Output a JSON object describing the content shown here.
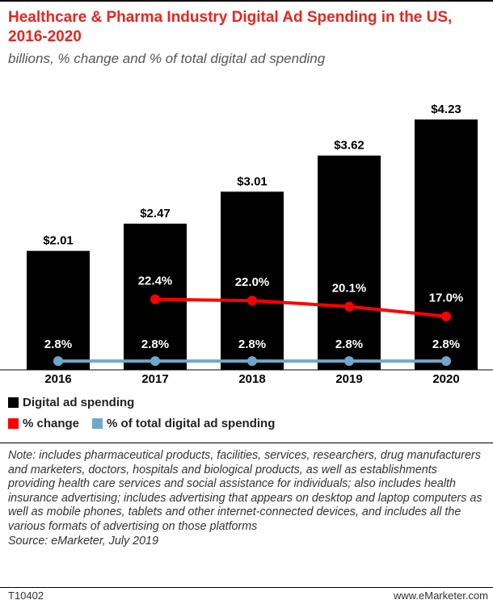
{
  "chart_data": {
    "type": "bar",
    "title": "Healthcare & Pharma Industry Digital Ad Spending in the US, 2016-2020",
    "subtitle": "billions, % change and % of total digital ad spending",
    "categories": [
      "2016",
      "2017",
      "2018",
      "2019",
      "2020"
    ],
    "series": [
      {
        "name": "Digital ad spending",
        "color": "#000000",
        "values": [
          2.01,
          2.47,
          3.01,
          3.62,
          4.23
        ],
        "value_labels": [
          "$2.01",
          "$2.47",
          "$3.01",
          "$3.62",
          "$4.23"
        ]
      },
      {
        "name": "% change",
        "color": "#ff0000",
        "axis": "y2",
        "values": [
          null,
          22.4,
          22.0,
          20.1,
          17.0
        ],
        "value_labels": [
          null,
          "22.4%",
          "22.0%",
          "20.1%",
          "17.0%"
        ]
      },
      {
        "name": "% of total digital ad spending",
        "color": "#6fa8cc",
        "axis": "y2",
        "values": [
          2.8,
          2.8,
          2.8,
          2.8,
          2.8
        ],
        "value_labels": [
          "2.8%",
          "2.8%",
          "2.8%",
          "2.8%",
          "2.8%"
        ]
      }
    ],
    "note": "Note: includes pharmaceutical products, facilities, services, researchers, drug manufacturers and marketers, doctors, hospitals and biological products, as well as establishments providing health care services and social assistance for individuals; also includes health insurance advertising; includes advertising that appears on desktop and laptop computers as well as mobile phones, tablets and other internet-connected devices, and includes all the various formats of advertising on those platforms",
    "source": "Source: eMarketer, July 2019",
    "chart_id": "T10402",
    "website": "www.eMarketer.com"
  }
}
